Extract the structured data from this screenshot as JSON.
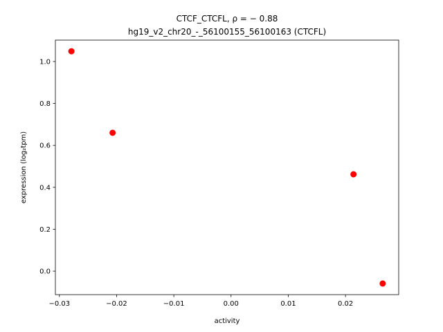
{
  "chart_data": {
    "type": "scatter",
    "title_line1": "CTCF_CTCFL, ρ = − 0.88",
    "title_line2": "hg19_v2_chr20_-_56100155_56100163 (CTCFL)",
    "xlabel": "activity",
    "ylabel": "expression (log₂tpm)",
    "xlim": [
      -0.0307,
      0.0293
    ],
    "ylim": [
      -0.112,
      1.102
    ],
    "xticks": [
      -0.03,
      -0.02,
      -0.01,
      0.0,
      0.01,
      0.02
    ],
    "xtick_labels": [
      "−0.03",
      "−0.02",
      "−0.01",
      "0.00",
      "0.01",
      "0.02"
    ],
    "yticks": [
      0.0,
      0.2,
      0.4,
      0.6,
      0.8,
      1.0
    ],
    "ytick_labels": [
      "0.0",
      "0.2",
      "0.4",
      "0.6",
      "0.8",
      "1.0"
    ],
    "grid": false,
    "color": "#ff0000",
    "points": [
      {
        "x": -0.0279,
        "y": 1.049
      },
      {
        "x": -0.0207,
        "y": 0.66
      },
      {
        "x": 0.0214,
        "y": 0.462
      },
      {
        "x": 0.0265,
        "y": -0.059
      }
    ]
  }
}
